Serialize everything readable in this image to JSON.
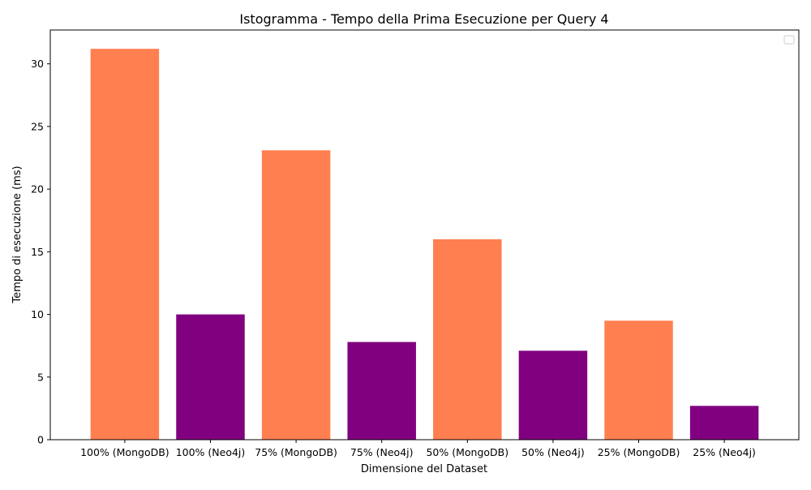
{
  "chart_data": {
    "type": "bar",
    "title": "Istogramma - Tempo della Prima Esecuzione per Query 4",
    "xlabel": "Dimensione del Dataset",
    "ylabel": "Tempo di esecuzione (ms)",
    "categories": [
      "100% (MongoDB)",
      "100% (Neo4j)",
      "75% (MongoDB)",
      "75% (Neo4j)",
      "50% (MongoDB)",
      "50% (Neo4j)",
      "25% (MongoDB)",
      "25% (Neo4j)"
    ],
    "values": [
      31.2,
      10.0,
      23.1,
      7.8,
      16.0,
      7.1,
      9.5,
      2.7
    ],
    "bar_colors": [
      "#ff7f50",
      "#800080",
      "#ff7f50",
      "#800080",
      "#ff7f50",
      "#800080",
      "#ff7f50",
      "#800080"
    ],
    "yticks": [
      0,
      5,
      10,
      15,
      20,
      25,
      30
    ],
    "ylim": [
      0,
      32.7
    ],
    "grid": false,
    "legend": {
      "position": "top-right",
      "entries": []
    }
  }
}
